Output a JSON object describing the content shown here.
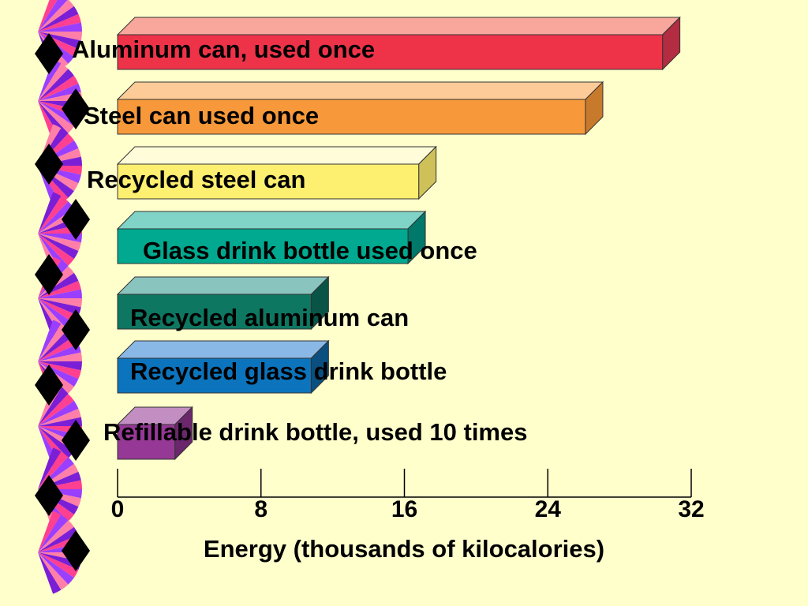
{
  "slide": {
    "background": "#ffffcc"
  },
  "decoration": {
    "fan_colors": [
      "#ff3f8f",
      "#9a3fff",
      "#ff7fa8",
      "#7a1fd6"
    ],
    "diamond_color": "#000000"
  },
  "chart_data": {
    "type": "bar",
    "orientation": "horizontal",
    "style": "3d",
    "categories": [
      "Aluminum can, used once",
      "Steel can used once",
      "Recycled steel can",
      "Glass drink bottle used once",
      "Recycled aluminum can",
      "Recycled glass drink bottle",
      "Refillable drink bottle, used 10 times"
    ],
    "values": [
      30.4,
      26.1,
      16.8,
      16.2,
      10.8,
      10.8,
      3.2
    ],
    "colors": [
      {
        "front": "#ee3349",
        "top": "#f9a79d",
        "side": "#b32c42"
      },
      {
        "front": "#f7993a",
        "top": "#fdcb98",
        "side": "#c87a2c"
      },
      {
        "front": "#fdef6f",
        "top": "#fefcd9",
        "side": "#cfc15a"
      },
      {
        "front": "#00a98f",
        "top": "#80d4c7",
        "side": "#00786a"
      },
      {
        "front": "#0e7762",
        "top": "#8ac4bf",
        "side": "#0a5447"
      },
      {
        "front": "#0c74bd",
        "top": "#8ab8e6",
        "side": "#0a4f7f"
      },
      {
        "front": "#963895",
        "top": "#c38ec2",
        "side": "#6b276b"
      }
    ],
    "xticks": [
      0,
      8,
      16,
      24,
      32
    ],
    "xlim": [
      0,
      32
    ],
    "xlabel": "Energy (thousands of kilocalories)",
    "ylabel": "",
    "title": "",
    "grid": false,
    "legend": "none"
  }
}
